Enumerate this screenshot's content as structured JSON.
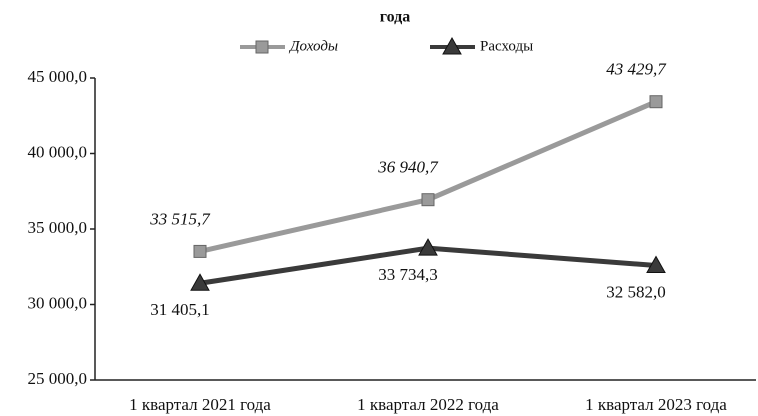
{
  "chart_data": {
    "type": "line",
    "title": "года",
    "categories": [
      "1 квартал 2021 года",
      "1 квартал 2022 года",
      "1 квартал 2023 года"
    ],
    "series": [
      {
        "name": "Доходы",
        "color": "#9a9a9a",
        "marker": "square",
        "values": [
          33515.7,
          36940.7,
          43429.7
        ],
        "value_labels": [
          "33 515,7",
          "36 940,7",
          "43 429,7"
        ]
      },
      {
        "name": "Расходы",
        "color": "#3a3a3a",
        "marker": "triangle",
        "values": [
          31405.1,
          33734.3,
          32582.0
        ],
        "value_labels": [
          "31 405,1",
          "33 734,3",
          "32 582,0"
        ]
      }
    ],
    "ylim": [
      25000,
      45000
    ],
    "yticks": [
      {
        "value": 25000,
        "label": "25 000,0"
      },
      {
        "value": 30000,
        "label": "30 000,0"
      },
      {
        "value": 35000,
        "label": "35 000,0"
      },
      {
        "value": 40000,
        "label": "40 000,0"
      },
      {
        "value": 45000,
        "label": "45 000,0"
      }
    ],
    "grid": false,
    "legend": "top"
  }
}
